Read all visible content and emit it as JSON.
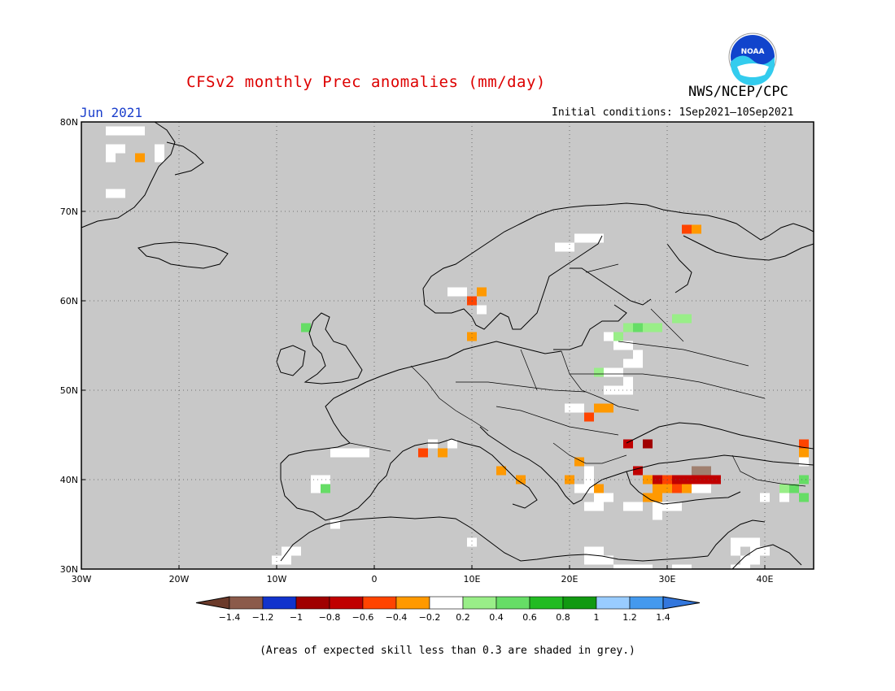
{
  "header": {
    "title": "CFSv2 monthly Prec anomalies (mm/day)",
    "org": "NWS/NCEP/CPC",
    "month": "Jun 2021",
    "initial_conditions": "Initial conditions: 1Sep2021—10Sep2021",
    "logo_text": "NOAA"
  },
  "map": {
    "background_color": "#c8c8c8",
    "lon_range": [
      -30,
      45
    ],
    "lat_range": [
      30,
      80
    ],
    "lon_ticks": [
      "30W",
      "20W",
      "10W",
      "0",
      "10E",
      "20E",
      "30E",
      "40E"
    ],
    "lat_ticks": [
      "80N",
      "70N",
      "60N",
      "50N",
      "40N",
      "30N"
    ],
    "anomaly_cells": [
      {
        "lon": -24,
        "lat": 76,
        "color": "#ff9900"
      },
      {
        "lon": 10,
        "lat": 56,
        "color": "#ff9900"
      },
      {
        "lon": 10,
        "lat": 60,
        "color": "#ff4400"
      },
      {
        "lon": 11,
        "lat": 61,
        "color": "#ff9900"
      },
      {
        "lon": 32,
        "lat": 68,
        "color": "#ff4400"
      },
      {
        "lon": 33,
        "lat": 68,
        "color": "#ff9900"
      },
      {
        "lon": 22,
        "lat": 47,
        "color": "#ff4400"
      },
      {
        "lon": 23,
        "lat": 48,
        "color": "#ff9900"
      },
      {
        "lon": 24,
        "lat": 48,
        "color": "#ff9900"
      },
      {
        "lon": 26,
        "lat": 44,
        "color": "#c00000"
      },
      {
        "lon": 28,
        "lat": 44,
        "color": "#a00000"
      },
      {
        "lon": 5,
        "lat": 43,
        "color": "#ff4400"
      },
      {
        "lon": 7,
        "lat": 43,
        "color": "#ff9900"
      },
      {
        "lon": 13,
        "lat": 41,
        "color": "#ff9900"
      },
      {
        "lon": 15,
        "lat": 40,
        "color": "#ff9900"
      },
      {
        "lon": 21,
        "lat": 42,
        "color": "#ff9900"
      },
      {
        "lon": 20,
        "lat": 40,
        "color": "#ff9900"
      },
      {
        "lon": 23,
        "lat": 39,
        "color": "#ff9900"
      },
      {
        "lon": 27,
        "lat": 41,
        "color": "#c00000"
      },
      {
        "lon": 28,
        "lat": 40,
        "color": "#ff9900"
      },
      {
        "lon": 29,
        "lat": 40,
        "color": "#c00000"
      },
      {
        "lon": 30,
        "lat": 40,
        "color": "#ff4400"
      },
      {
        "lon": 31,
        "lat": 40,
        "color": "#c00000"
      },
      {
        "lon": 32,
        "lat": 40,
        "color": "#c00000"
      },
      {
        "lon": 33,
        "lat": 41,
        "color": "#a08070"
      },
      {
        "lon": 34,
        "lat": 41,
        "color": "#a08070"
      },
      {
        "lon": 33,
        "lat": 40,
        "color": "#c00000"
      },
      {
        "lon": 34,
        "lat": 40,
        "color": "#c00000"
      },
      {
        "lon": 35,
        "lat": 40,
        "color": "#c00000"
      },
      {
        "lon": 29,
        "lat": 39,
        "color": "#ff9900"
      },
      {
        "lon": 30,
        "lat": 39,
        "color": "#ff9900"
      },
      {
        "lon": 28,
        "lat": 38,
        "color": "#ff9900"
      },
      {
        "lon": 29,
        "lat": 38,
        "color": "#ff9900"
      },
      {
        "lon": 31,
        "lat": 39,
        "color": "#ff4400"
      },
      {
        "lon": 32,
        "lat": 39,
        "color": "#ff9900"
      },
      {
        "lon": 44,
        "lat": 44,
        "color": "#ff4400"
      },
      {
        "lon": 44,
        "lat": 43,
        "color": "#ff9900"
      },
      {
        "lon": 26,
        "lat": 57,
        "color": "#99ee88"
      },
      {
        "lon": 27,
        "lat": 57,
        "color": "#66dd66"
      },
      {
        "lon": 28,
        "lat": 57,
        "color": "#99ee88"
      },
      {
        "lon": 29,
        "lat": 57,
        "color": "#99ee88"
      },
      {
        "lon": 25,
        "lat": 56,
        "color": "#99ee88"
      },
      {
        "lon": 31,
        "lat": 58,
        "color": "#99ee88"
      },
      {
        "lon": 32,
        "lat": 58,
        "color": "#99ee88"
      },
      {
        "lon": 23,
        "lat": 52,
        "color": "#99ee88"
      },
      {
        "lon": -7,
        "lat": 57,
        "color": "#66dd66"
      },
      {
        "lon": -5,
        "lat": 39,
        "color": "#66dd66"
      },
      {
        "lon": 42,
        "lat": 39,
        "color": "#99ee88"
      },
      {
        "lon": 43,
        "lat": 39,
        "color": "#66dd66"
      },
      {
        "lon": 44,
        "lat": 40,
        "color": "#66dd66"
      },
      {
        "lon": 44,
        "lat": 38,
        "color": "#66dd66"
      }
    ],
    "white_cells": [
      [
        -27,
        79
      ],
      [
        -26,
        79
      ],
      [
        -25,
        79
      ],
      [
        -24,
        79
      ],
      [
        -27,
        77
      ],
      [
        -26,
        77
      ],
      [
        -22,
        77
      ],
      [
        -27,
        76
      ],
      [
        -22,
        76
      ],
      [
        -27,
        72
      ],
      [
        -26,
        72
      ],
      [
        19,
        66
      ],
      [
        20,
        66
      ],
      [
        21,
        67
      ],
      [
        22,
        67
      ],
      [
        23,
        67
      ],
      [
        11,
        59
      ],
      [
        8,
        61
      ],
      [
        9,
        61
      ],
      [
        24,
        56
      ],
      [
        25,
        55
      ],
      [
        26,
        55
      ],
      [
        27,
        54
      ],
      [
        26,
        53
      ],
      [
        27,
        53
      ],
      [
        24,
        52
      ],
      [
        25,
        52
      ],
      [
        26,
        51
      ],
      [
        24,
        50
      ],
      [
        25,
        50
      ],
      [
        26,
        50
      ],
      [
        21,
        48
      ],
      [
        20,
        48
      ],
      [
        6,
        44
      ],
      [
        8,
        44
      ],
      [
        -4,
        43
      ],
      [
        -3,
        43
      ],
      [
        -2,
        43
      ],
      [
        -1,
        43
      ],
      [
        -6,
        40
      ],
      [
        -5,
        40
      ],
      [
        -6,
        39
      ],
      [
        -4,
        35
      ],
      [
        -9,
        32
      ],
      [
        -8,
        32
      ],
      [
        -9,
        31
      ],
      [
        -10,
        31
      ],
      [
        10,
        33
      ],
      [
        22,
        41
      ],
      [
        22,
        40
      ],
      [
        22,
        39
      ],
      [
        21,
        39
      ],
      [
        23,
        38
      ],
      [
        22,
        37
      ],
      [
        23,
        37
      ],
      [
        24,
        38
      ],
      [
        26,
        37
      ],
      [
        27,
        37
      ],
      [
        29,
        37
      ],
      [
        30,
        37
      ],
      [
        31,
        37
      ],
      [
        33,
        39
      ],
      [
        34,
        39
      ],
      [
        29,
        36
      ],
      [
        22,
        32
      ],
      [
        23,
        32
      ],
      [
        22,
        31
      ],
      [
        23,
        31
      ],
      [
        24,
        31
      ],
      [
        25,
        30
      ],
      [
        26,
        30
      ],
      [
        27,
        30
      ],
      [
        28,
        30
      ],
      [
        31,
        30
      ],
      [
        32,
        30
      ],
      [
        37,
        33
      ],
      [
        38,
        33
      ],
      [
        39,
        33
      ],
      [
        37,
        32
      ],
      [
        39,
        32
      ],
      [
        40,
        32
      ],
      [
        38,
        31
      ],
      [
        39,
        31
      ],
      [
        37,
        30
      ],
      [
        38,
        30
      ],
      [
        40,
        38
      ],
      [
        42,
        38
      ],
      [
        44,
        42
      ]
    ]
  },
  "colorbar": {
    "colors": [
      "#8b5a4a",
      "#1133cc",
      "#a00000",
      "#c00000",
      "#ff4400",
      "#ff9900",
      "#ffffff",
      "#99ee88",
      "#66dd66",
      "#22bb22",
      "#119911",
      "#99ccff",
      "#4499ee"
    ],
    "left_end_color": "#6b3a2a",
    "right_end_color": "#3377dd",
    "labels": [
      "-1.4",
      "-1.2",
      "-1",
      "-0.8",
      "-0.6",
      "-0.4",
      "-0.2",
      "0.2",
      "0.4",
      "0.6",
      "0.8",
      "1",
      "1.2",
      "1.4"
    ]
  },
  "footnote": "(Areas of expected skill less than 0.3 are shaded in grey.)"
}
